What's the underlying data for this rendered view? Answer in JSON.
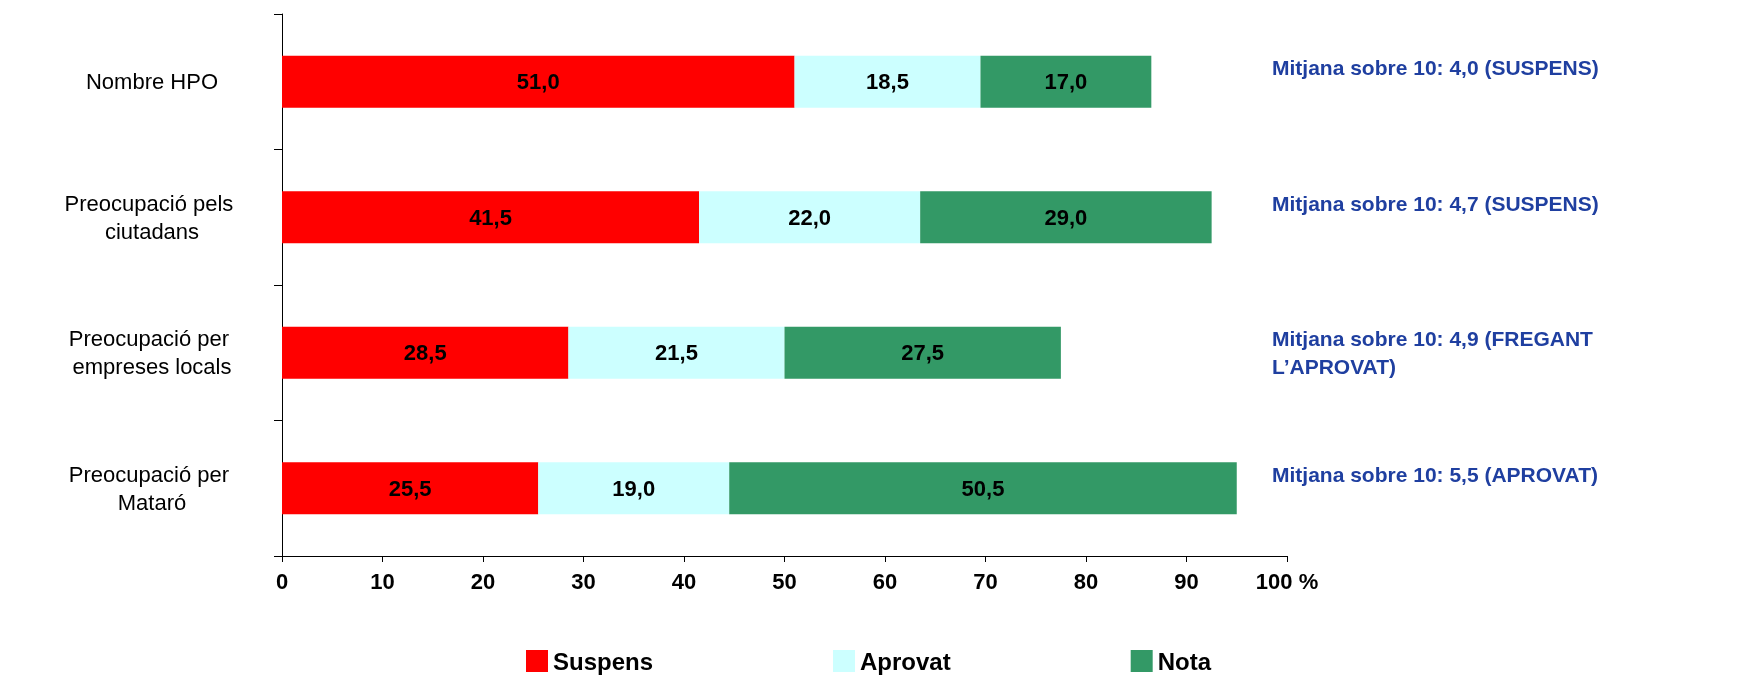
{
  "chart_data": {
    "type": "bar",
    "orientation": "horizontal",
    "stacked": true,
    "categories": [
      "Nombre HPO",
      "Preocupació pels ciutadans",
      "Preocupació per empreses locals",
      "Preocupació per Mataró"
    ],
    "series": [
      {
        "name": "Suspens",
        "color": "#ff0000",
        "values": [
          51.0,
          41.5,
          28.5,
          25.5
        ],
        "value_labels": [
          "51,0",
          "41,5",
          "28,5",
          "25,5"
        ]
      },
      {
        "name": "Aprovat",
        "color": "#ccffff",
        "values": [
          18.5,
          22.0,
          21.5,
          19.0
        ],
        "value_labels": [
          "18,5",
          "22,0",
          "21,5",
          "19,0"
        ]
      },
      {
        "name": "Nota",
        "color": "#339966",
        "values": [
          17.0,
          29.0,
          27.5,
          50.5
        ],
        "value_labels": [
          "17,0",
          "29,0",
          "27,5",
          "50,5"
        ]
      }
    ],
    "xlim": [
      0,
      100
    ],
    "xticks": [
      0,
      10,
      20,
      30,
      40,
      50,
      60,
      70,
      80,
      90,
      {
        "value": 100,
        "label": "100 %"
      }
    ],
    "annotations": [
      "Mitjana sobre 10: 4,0 (SUSPENS)",
      "Mitjana sobre 10: 4,7 (SUSPENS)",
      "Mitjana sobre 10: 4,9 (FREGANT L’APROVAT)",
      "Mitjana sobre 10: 5,5 (APROVAT)"
    ],
    "grid": false,
    "legend": "bottom"
  }
}
